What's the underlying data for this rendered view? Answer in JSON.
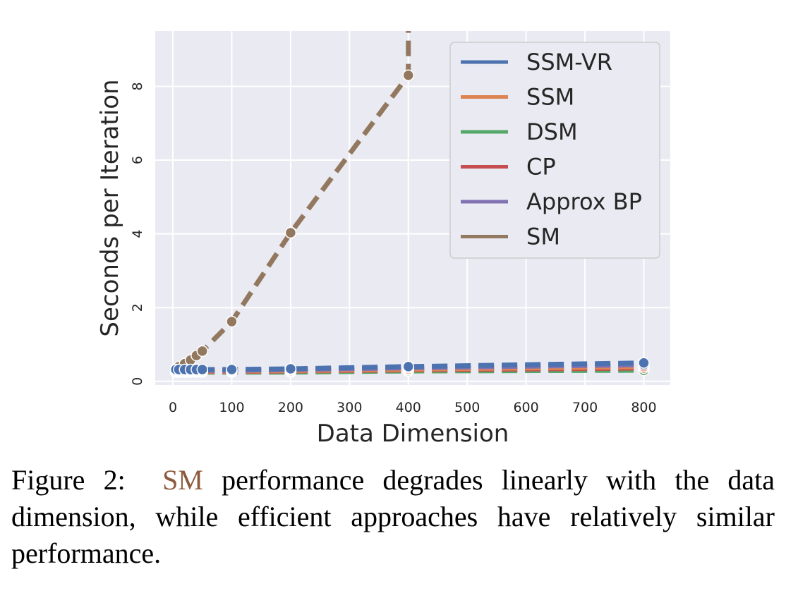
{
  "chart_data": {
    "type": "line",
    "xlabel": "Data Dimension",
    "ylabel": "Seconds per Iteration",
    "xlim": [
      -30,
      845
    ],
    "ylim": [
      -0.1,
      9.5
    ],
    "xticks": [
      0,
      100,
      200,
      300,
      400,
      500,
      600,
      700,
      800
    ],
    "yticks": [
      0,
      2,
      4,
      6,
      8
    ],
    "grid": true,
    "legend_position": "top-right",
    "series": [
      {
        "name": "SSM-VR",
        "color": "#4c72b0",
        "x": [
          5,
          10,
          20,
          30,
          40,
          50,
          100,
          200,
          400,
          800
        ],
        "y": [
          0.32,
          0.32,
          0.32,
          0.32,
          0.32,
          0.32,
          0.32,
          0.34,
          0.4,
          0.5
        ]
      },
      {
        "name": "SSM",
        "color": "#dd8452",
        "x": [
          5,
          10,
          20,
          30,
          40,
          50,
          100,
          200,
          400,
          800
        ],
        "y": [
          0.28,
          0.28,
          0.28,
          0.28,
          0.28,
          0.28,
          0.28,
          0.29,
          0.33,
          0.4
        ]
      },
      {
        "name": "DSM",
        "color": "#55a868",
        "x": [
          5,
          10,
          20,
          30,
          40,
          50,
          100,
          200,
          400,
          800
        ],
        "y": [
          0.25,
          0.25,
          0.25,
          0.25,
          0.25,
          0.25,
          0.25,
          0.25,
          0.28,
          0.3
        ]
      },
      {
        "name": "CP",
        "color": "#c44e52",
        "x": [
          5,
          10,
          20,
          30,
          40,
          50,
          100,
          200,
          400,
          800
        ],
        "y": [
          0.27,
          0.27,
          0.27,
          0.27,
          0.27,
          0.27,
          0.27,
          0.28,
          0.31,
          0.36
        ]
      },
      {
        "name": "Approx BP",
        "color": "#8172b3",
        "x": [
          5,
          10,
          20,
          30,
          40,
          50,
          100,
          200,
          400,
          800
        ],
        "y": [
          0.3,
          0.3,
          0.3,
          0.3,
          0.3,
          0.3,
          0.3,
          0.32,
          0.37,
          0.45
        ]
      },
      {
        "name": "SM",
        "color": "#937860",
        "x": [
          5,
          10,
          20,
          30,
          40,
          50,
          100,
          200,
          400
        ],
        "y": [
          0.35,
          0.4,
          0.48,
          0.58,
          0.7,
          0.82,
          1.62,
          4.03,
          8.3
        ],
        "continues_above_ylim_at_x": 400
      }
    ]
  },
  "caption": {
    "prefix": "Figure 2:",
    "highlight": "SM",
    "rest": "performance degrades linearly with the data dimension, while efficient approaches have relatively similar performance."
  }
}
